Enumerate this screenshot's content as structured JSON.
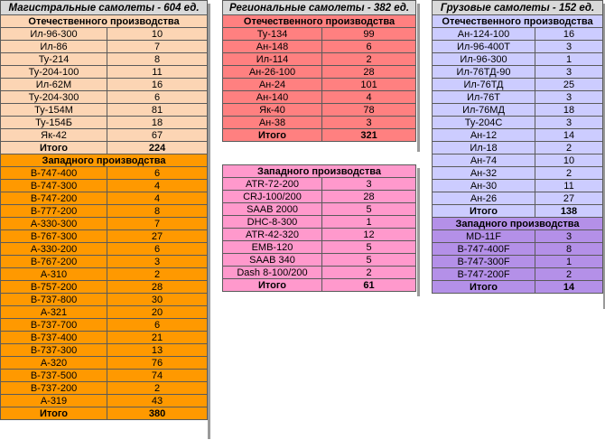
{
  "trunk": {
    "title": "Магистральные самолеты - 604 ед.",
    "domestic_header": "Отечественного производства",
    "domestic": [
      [
        "Ил-96-300",
        "10"
      ],
      [
        "Ил-86",
        "7"
      ],
      [
        "Ту-214",
        "8"
      ],
      [
        "Ту-204-100",
        "11"
      ],
      [
        "Ил-62М",
        "16"
      ],
      [
        "Ту-204-300",
        "6"
      ],
      [
        "Ту-154М",
        "81"
      ],
      [
        "Ту-154Б",
        "18"
      ],
      [
        "Як-42",
        "67"
      ]
    ],
    "domestic_total": [
      "Итого",
      "224"
    ],
    "western_header": "Западного производства",
    "western": [
      [
        "B-747-400",
        "6"
      ],
      [
        "B-747-300",
        "4"
      ],
      [
        "B-747-200",
        "4"
      ],
      [
        "B-777-200",
        "8"
      ],
      [
        "A-330-300",
        "7"
      ],
      [
        "B-767-300",
        "27"
      ],
      [
        "A-330-200",
        "6"
      ],
      [
        "B-767-200",
        "3"
      ],
      [
        "A-310",
        "2"
      ],
      [
        "B-757-200",
        "28"
      ],
      [
        "B-737-800",
        "30"
      ],
      [
        "A-321",
        "20"
      ],
      [
        "B-737-700",
        "6"
      ],
      [
        "B-737-400",
        "21"
      ],
      [
        "B-737-300",
        "13"
      ],
      [
        "A-320",
        "76"
      ],
      [
        "B-737-500",
        "74"
      ],
      [
        "B-737-200",
        "2"
      ],
      [
        "A-319",
        "43"
      ]
    ],
    "western_total": [
      "Итого",
      "380"
    ]
  },
  "regional": {
    "title": "Региональные самолеты - 382 ед.",
    "domestic_header": "Отечественного производства",
    "domestic": [
      [
        "Ту-134",
        "99"
      ],
      [
        "Ан-148",
        "6"
      ],
      [
        "Ил-114",
        "2"
      ],
      [
        "Ан-26-100",
        "28"
      ],
      [
        "Ан-24",
        "101"
      ],
      [
        "Ан-140",
        "4"
      ],
      [
        "Як-40",
        "78"
      ],
      [
        "Ан-38",
        "3"
      ]
    ],
    "domestic_total": [
      "Итого",
      "321"
    ],
    "western_header": "Западного производства",
    "western": [
      [
        "ATR-72-200",
        "3"
      ],
      [
        "CRJ-100/200",
        "28"
      ],
      [
        "SAAB 2000",
        "5"
      ],
      [
        "DHC-8-300",
        "1"
      ],
      [
        "ATR-42-320",
        "12"
      ],
      [
        "EMB-120",
        "5"
      ],
      [
        "SAAB 340",
        "5"
      ],
      [
        "Dash 8-100/200",
        "2"
      ]
    ],
    "western_total": [
      "Итого",
      "61"
    ]
  },
  "cargo": {
    "title": "Грузовые самолеты - 152 ед.",
    "domestic_header": "Отечественного производства",
    "domestic": [
      [
        "Ан-124-100",
        "16"
      ],
      [
        "Ил-96-400Т",
        "3"
      ],
      [
        "Ил-96-300",
        "1"
      ],
      [
        "Ил-76ТД-90",
        "3"
      ],
      [
        "Ил-76ТД",
        "25"
      ],
      [
        "Ил-76Т",
        "3"
      ],
      [
        "Ил-76МД",
        "18"
      ],
      [
        "Ту-204С",
        "3"
      ],
      [
        "Ан-12",
        "14"
      ],
      [
        "Ил-18",
        "2"
      ],
      [
        "Ан-74",
        "10"
      ],
      [
        "Ан-32",
        "2"
      ],
      [
        "Ан-30",
        "11"
      ],
      [
        "Ан-26",
        "27"
      ]
    ],
    "domestic_total": [
      "Итого",
      "138"
    ],
    "western_header": "Западного производства",
    "western": [
      [
        "MD-11F",
        "3"
      ],
      [
        "B-747-400F",
        "8"
      ],
      [
        "B-747-300F",
        "1"
      ],
      [
        "B-747-200F",
        "2"
      ]
    ],
    "western_total": [
      "Итого",
      "14"
    ]
  },
  "colors": {
    "trunk_domestic": "#fcd5b4",
    "trunk_western": "#ff9900",
    "regional_domestic": "#ff8080",
    "regional_western": "#ff99cc",
    "cargo_domestic": "#ccccff",
    "cargo_western": "#b490e8",
    "title_bg": "#d9d9d9"
  }
}
